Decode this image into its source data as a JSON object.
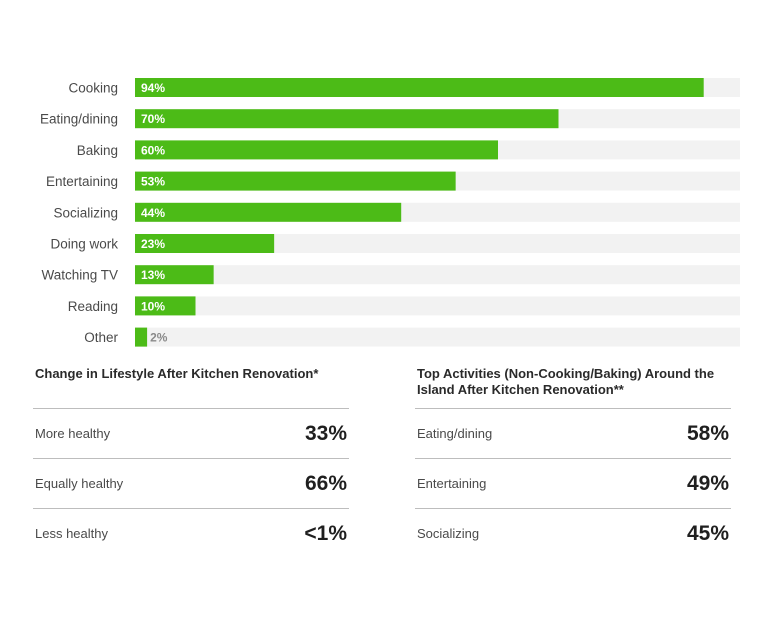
{
  "chart_data": {
    "type": "bar",
    "orientation": "horizontal",
    "categories": [
      "Cooking",
      "Eating/dining",
      "Baking",
      "Entertaining",
      "Socializing",
      "Doing work",
      "Watching TV",
      "Reading",
      "Other"
    ],
    "values": [
      94,
      70,
      60,
      53,
      44,
      23,
      13,
      10,
      2
    ],
    "value_labels": [
      "94%",
      "70%",
      "60%",
      "53%",
      "44%",
      "23%",
      "13%",
      "10%",
      "2%"
    ],
    "xlim": [
      0,
      100
    ],
    "grid": false,
    "bar_color": "#4cbb17",
    "track_color": "#f2f2f2"
  },
  "lifestyle": {
    "title": "Change in Lifestyle After Kitchen Renovation*",
    "rows": [
      {
        "label": "More healthy",
        "value": "33%"
      },
      {
        "label": "Equally healthy",
        "value": "66%"
      },
      {
        "label": "Less healthy",
        "value": "<1%"
      }
    ]
  },
  "island": {
    "title": "Top Activities (Non-Cooking/Baking) Around the Island After Kitchen Renovation**",
    "rows": [
      {
        "label": "Eating/dining",
        "value": "58%"
      },
      {
        "label": "Entertaining",
        "value": "49%"
      },
      {
        "label": "Socializing",
        "value": "45%"
      }
    ]
  }
}
